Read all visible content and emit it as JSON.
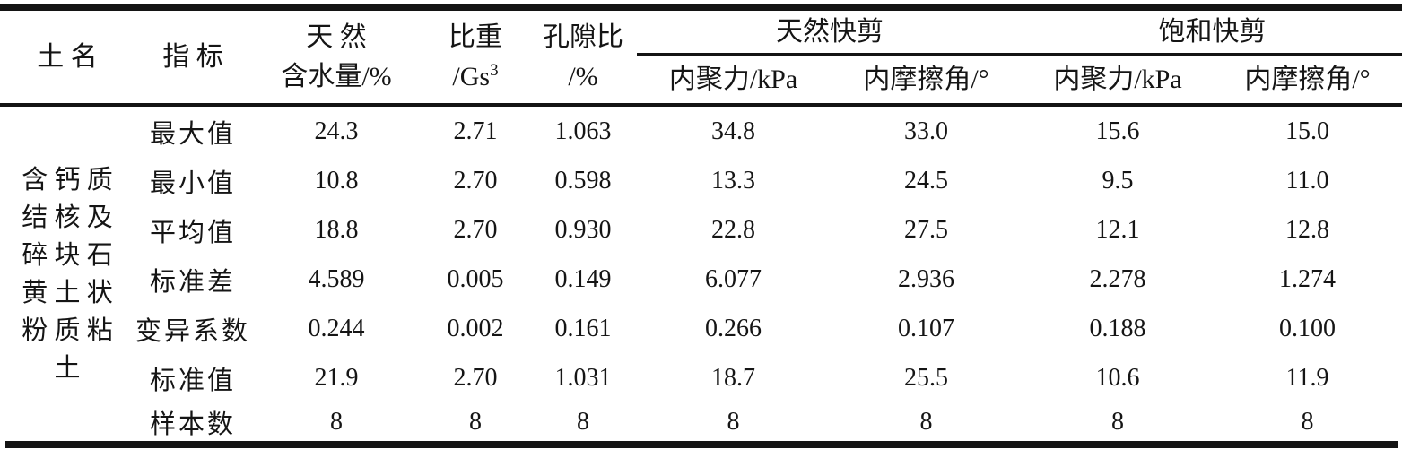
{
  "table": {
    "header": {
      "soil": "土 名",
      "indicator": "指 标",
      "water_line1": "天 然",
      "water_line2": "含水量/%",
      "gs_line1": "比重",
      "gs_line2_base": "/Gs",
      "gs_sup": "3",
      "void_line1": "孔隙比",
      "void_line2": "/%",
      "group_natural": "天然快剪",
      "group_saturated": "饱和快剪",
      "natural_cohesion": "内聚力/kPa",
      "natural_friction": "内摩擦角/°",
      "saturated_cohesion": "内聚力/kPa",
      "saturated_friction": "内摩擦角/°"
    },
    "soil_name": "含钙质结核及碎块石黄土状粉质粘土",
    "soil_name_lines": [
      "含 钙 质",
      "结 核 及",
      "碎 块 石",
      "黄 土 状",
      "粉 质 粘",
      "土"
    ],
    "rows": [
      {
        "label": "最大值",
        "values": [
          "24.3",
          "2.71",
          "1.063",
          "34.8",
          "33.0",
          "15.6",
          "15.0"
        ]
      },
      {
        "label": "最小值",
        "values": [
          "10.8",
          "2.70",
          "0.598",
          "13.3",
          "24.5",
          "9.5",
          "11.0"
        ]
      },
      {
        "label": "平均值",
        "values": [
          "18.8",
          "2.70",
          "0.930",
          "22.8",
          "27.5",
          "12.1",
          "12.8"
        ]
      },
      {
        "label": "标准差",
        "values": [
          "4.589",
          "0.005",
          "0.149",
          "6.077",
          "2.936",
          "2.278",
          "1.274"
        ]
      },
      {
        "label": "变异系数",
        "values": [
          "0.244",
          "0.002",
          "0.161",
          "0.266",
          "0.107",
          "0.188",
          "0.100"
        ]
      },
      {
        "label": "标准值",
        "values": [
          "21.9",
          "2.70",
          "1.031",
          "18.7",
          "25.5",
          "10.6",
          "11.9"
        ]
      },
      {
        "label": "样本数",
        "values": [
          "8",
          "8",
          "8",
          "8",
          "8",
          "8",
          "8"
        ]
      }
    ],
    "line_color": "#141414"
  }
}
